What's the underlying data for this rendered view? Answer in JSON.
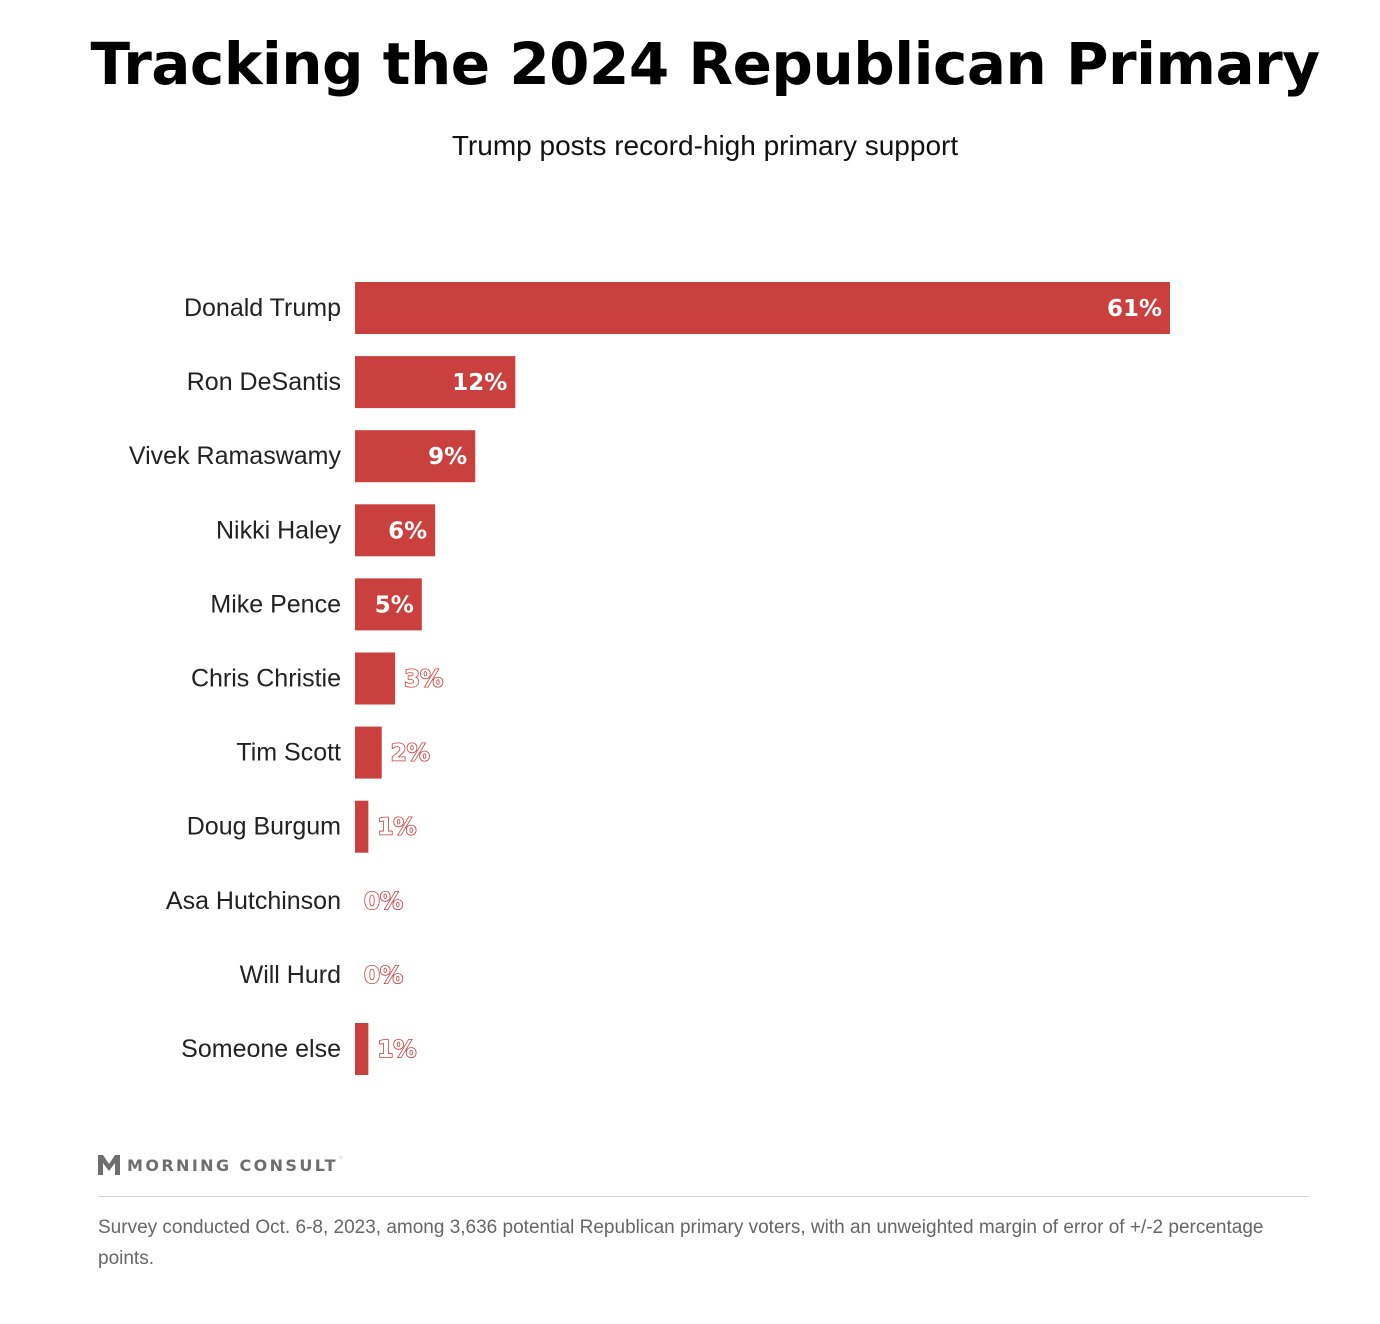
{
  "header": {
    "title": "Tracking the 2024 Republican Primary",
    "subtitle": "Trump posts record-high primary support"
  },
  "chart_data": {
    "type": "bar",
    "orientation": "horizontal",
    "title": "Tracking the 2024 Republican Primary",
    "subtitle": "Trump posts record-high primary support",
    "categories": [
      "Donald Trump",
      "Ron DeSantis",
      "Vivek Ramaswamy",
      "Nikki Haley",
      "Mike Pence",
      "Chris Christie",
      "Tim Scott",
      "Doug Burgum",
      "Asa Hutchinson",
      "Will Hurd",
      "Someone else"
    ],
    "values": [
      61,
      12,
      9,
      6,
      5,
      3,
      2,
      1,
      0,
      0,
      1
    ],
    "value_labels": [
      "61%",
      "12%",
      "9%",
      "6%",
      "5%",
      "3%",
      "2%",
      "1%",
      "0%",
      "0%",
      "1%"
    ],
    "unit": "%",
    "xlim": [
      0,
      61
    ],
    "grid": false,
    "legend": "none",
    "bar_color": "#c9403e"
  },
  "footer": {
    "brand": "MORNING CONSULT",
    "brand_icon": "morning-consult-logo-icon",
    "note": "Survey conducted Oct. 6-8, 2023, among 3,636 potential Republican primary voters, with an unweighted margin of error of +/-2 percentage points."
  }
}
